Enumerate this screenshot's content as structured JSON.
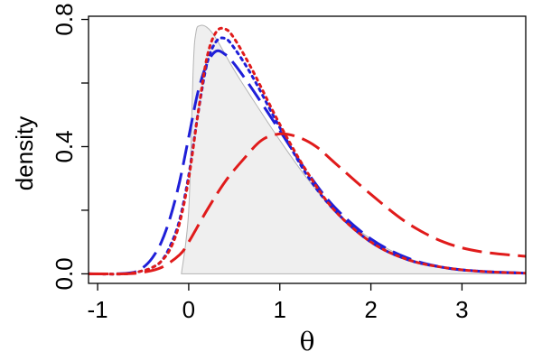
{
  "chart_data": {
    "type": "line",
    "title": "",
    "xlabel": "θ",
    "ylabel": "density",
    "xlim": [
      -1.1,
      3.7
    ],
    "ylim": [
      -0.03,
      0.81
    ],
    "xticks": [
      -1,
      0,
      1,
      2,
      3
    ],
    "xtick_labels": [
      "-1",
      "0",
      "1",
      "2",
      "3"
    ],
    "yticks": [
      0.0,
      0.4,
      0.8
    ],
    "ytick_labels": [
      "0.0",
      "0.4",
      "0.8"
    ],
    "grid": false,
    "legend": "none",
    "shaded_area": {
      "color": "#efefef",
      "outline": "#b4b4b4",
      "x": [
        -0.08,
        0.0,
        0.05,
        0.08,
        0.12,
        0.2,
        0.3,
        0.5,
        0.7,
        1.0,
        1.3,
        1.6,
        2.0,
        2.4,
        2.8,
        3.2,
        3.6
      ],
      "y": [
        0.0,
        0.2,
        0.65,
        0.76,
        0.78,
        0.775,
        0.74,
        0.64,
        0.55,
        0.42,
        0.3,
        0.2,
        0.11,
        0.05,
        0.02,
        0.01,
        0.005
      ]
    },
    "series": [
      {
        "color": "#1f1fd8",
        "dash": "long",
        "x": [
          -1.1,
          -0.8,
          -0.6,
          -0.5,
          -0.4,
          -0.3,
          -0.2,
          -0.1,
          0.0,
          0.1,
          0.2,
          0.3,
          0.4,
          0.5,
          0.7,
          1.0,
          1.3,
          1.6,
          2.0,
          2.4,
          2.8,
          3.2,
          3.7
        ],
        "y": [
          0.0,
          0.0,
          0.005,
          0.02,
          0.05,
          0.1,
          0.18,
          0.29,
          0.43,
          0.57,
          0.66,
          0.7,
          0.69,
          0.66,
          0.58,
          0.45,
          0.32,
          0.21,
          0.11,
          0.05,
          0.02,
          0.008,
          0.002
        ]
      },
      {
        "color": "#1f1fd8",
        "dash": "dot",
        "x": [
          -1.1,
          -0.7,
          -0.5,
          -0.4,
          -0.3,
          -0.2,
          -0.1,
          0.0,
          0.1,
          0.2,
          0.3,
          0.4,
          0.5,
          0.7,
          1.0,
          1.3,
          1.6,
          2.0,
          2.4,
          2.8,
          3.2,
          3.7
        ],
        "y": [
          0.0,
          0.0,
          0.01,
          0.02,
          0.04,
          0.09,
          0.17,
          0.31,
          0.5,
          0.66,
          0.73,
          0.74,
          0.71,
          0.62,
          0.46,
          0.31,
          0.2,
          0.1,
          0.045,
          0.02,
          0.008,
          0.002
        ]
      },
      {
        "color": "#e01b1b",
        "dash": "dot",
        "x": [
          -1.1,
          -0.7,
          -0.5,
          -0.4,
          -0.3,
          -0.2,
          -0.1,
          0.0,
          0.1,
          0.2,
          0.3,
          0.4,
          0.5,
          0.7,
          1.0,
          1.3,
          1.6,
          2.0,
          2.4,
          2.8,
          3.2,
          3.7
        ],
        "y": [
          0.0,
          0.0,
          0.01,
          0.02,
          0.04,
          0.08,
          0.16,
          0.3,
          0.5,
          0.68,
          0.76,
          0.77,
          0.74,
          0.64,
          0.47,
          0.32,
          0.2,
          0.1,
          0.045,
          0.02,
          0.008,
          0.002
        ]
      },
      {
        "color": "#e01b1b",
        "dash": "long",
        "x": [
          -1.1,
          -0.7,
          -0.5,
          -0.3,
          -0.1,
          0.0,
          0.2,
          0.4,
          0.6,
          0.8,
          1.0,
          1.2,
          1.4,
          1.6,
          2.0,
          2.4,
          2.8,
          3.2,
          3.7
        ],
        "y": [
          0.0,
          0.0,
          0.005,
          0.02,
          0.06,
          0.1,
          0.2,
          0.29,
          0.36,
          0.42,
          0.44,
          0.43,
          0.4,
          0.35,
          0.25,
          0.16,
          0.1,
          0.07,
          0.055
        ]
      }
    ]
  }
}
